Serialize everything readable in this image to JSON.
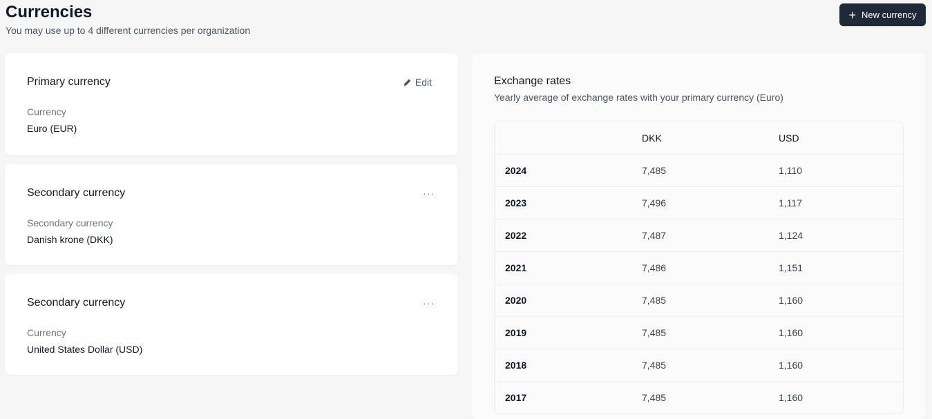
{
  "header": {
    "title": "Currencies",
    "subtitle": "You may use up to 4 different currencies per organization",
    "new_button": "New currency"
  },
  "cards": [
    {
      "title": "Primary currency",
      "action": "Edit",
      "label": "Currency",
      "value": "Euro (EUR)"
    },
    {
      "title": "Secondary currency",
      "action": "···",
      "label": "Secondary currency",
      "value": "Danish krone (DKK)"
    },
    {
      "title": "Secondary currency",
      "action": "···",
      "label": "Currency",
      "value": "United States Dollar (USD)"
    }
  ],
  "rates": {
    "title": "Exchange rates",
    "subtitle": "Yearly average of exchange rates with your primary currency (Euro)",
    "columns": [
      "",
      "DKK",
      "USD"
    ],
    "rows": [
      [
        "2024",
        "7,485",
        "1,110"
      ],
      [
        "2023",
        "7,496",
        "1,117"
      ],
      [
        "2022",
        "7,487",
        "1,124"
      ],
      [
        "2021",
        "7,486",
        "1,151"
      ],
      [
        "2020",
        "7,485",
        "1,160"
      ],
      [
        "2019",
        "7,485",
        "1,160"
      ],
      [
        "2018",
        "7,485",
        "1,160"
      ],
      [
        "2017",
        "7,485",
        "1,160"
      ]
    ]
  }
}
